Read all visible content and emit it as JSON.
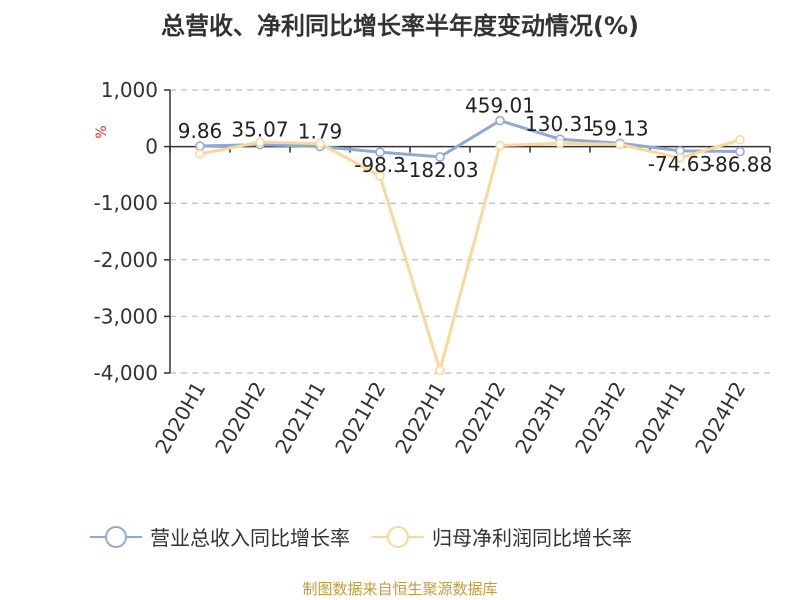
{
  "chart_data": {
    "type": "line",
    "title": "总营收、净利同比增长率半年度变动情况(%)",
    "ylabel": "%",
    "xlabel": "",
    "categories": [
      "2020H1",
      "2020H2",
      "2021H1",
      "2021H2",
      "2022H1",
      "2022H2",
      "2023H1",
      "2023H2",
      "2024H1",
      "2024H2"
    ],
    "ylim": [
      -4000,
      1000
    ],
    "yticks": [
      1000,
      0,
      -1000,
      -2000,
      -3000,
      -4000
    ],
    "ytick_labels": [
      "1,000",
      "0",
      "-1,000",
      "-2,000",
      "-3,000",
      "-4,000"
    ],
    "grid": true,
    "legend_position": "bottom",
    "series": [
      {
        "name": "营业总收入同比增长率",
        "color": "#8fa9d6",
        "values": [
          9.86,
          35.07,
          1.79,
          -98.3,
          -182.03,
          459.01,
          130.31,
          59.13,
          -74.63,
          -86.88
        ],
        "labels": [
          "9.86",
          "35.07",
          "1.79",
          "-98.3",
          "-182.03",
          "459.01",
          "130.31",
          "59.13",
          "-74.63",
          "-86.88"
        ]
      },
      {
        "name": "归母净利润同比增长率",
        "color": "#fad89b",
        "values": [
          -130,
          80,
          55,
          -520,
          -3950,
          20,
          60,
          40,
          -200,
          120
        ]
      }
    ]
  },
  "source_note": "制图数据来自恒生聚源数据库"
}
